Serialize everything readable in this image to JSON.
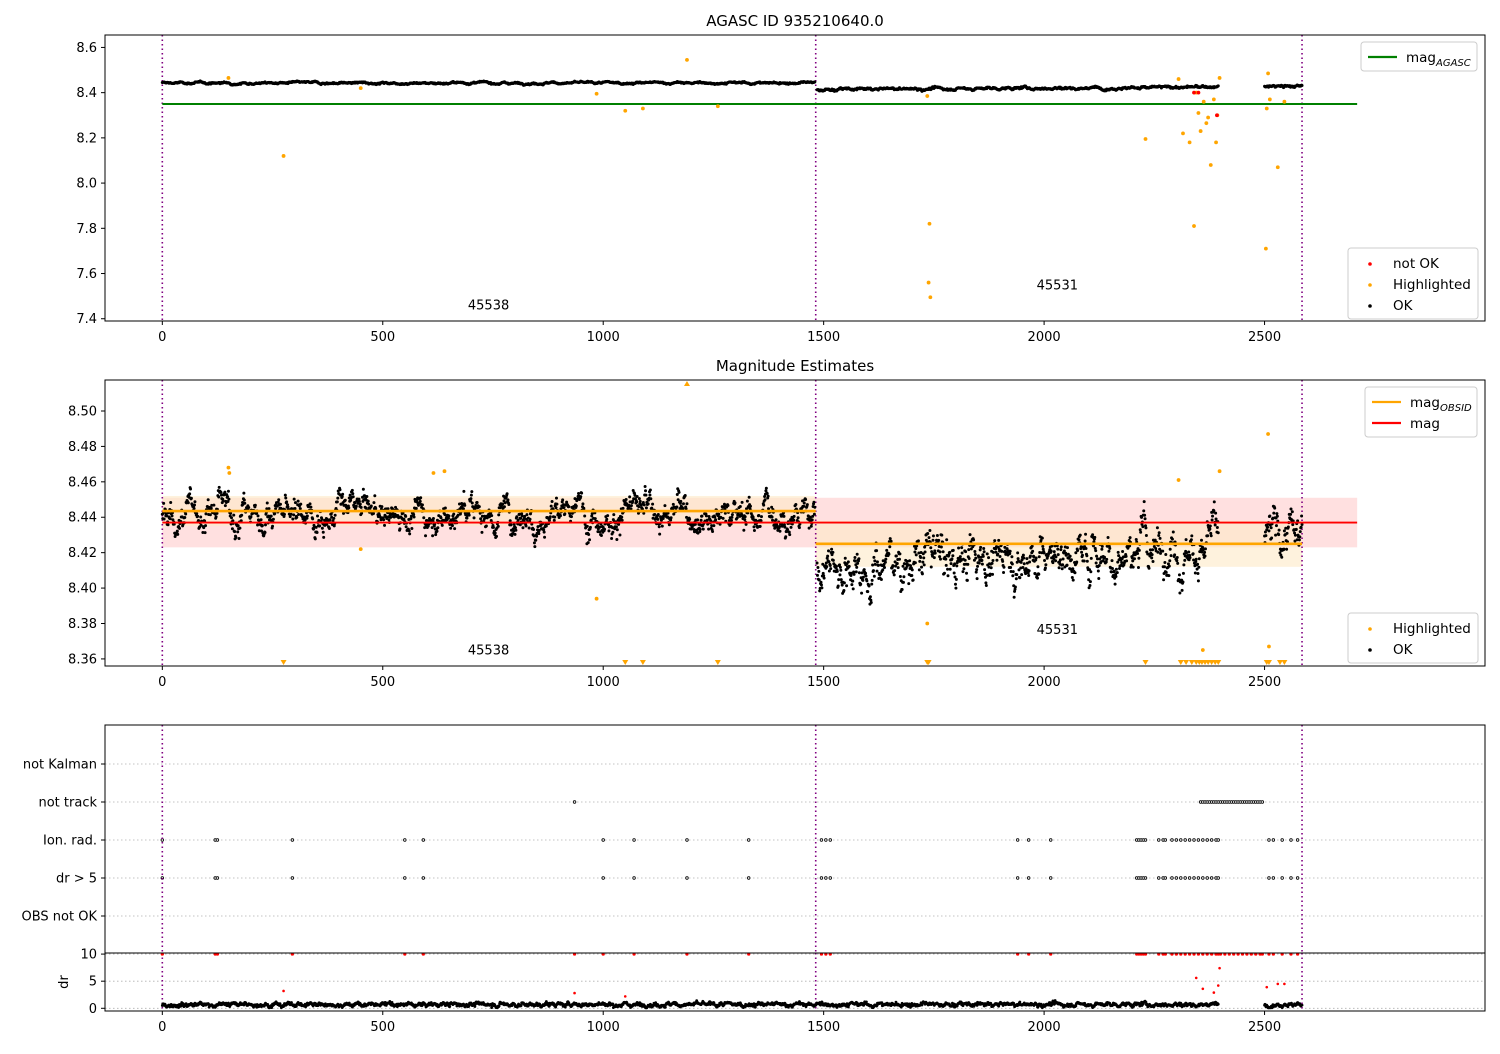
{
  "chart_data": [
    {
      "type": "scatter",
      "title": "AGASC ID 935210640.0",
      "xlabel": "",
      "ylabel": "",
      "xlim": [
        -130,
        3000
      ],
      "ylim": [
        7.39,
        8.655
      ],
      "xticks": [
        0,
        500,
        1000,
        1500,
        2000,
        2500
      ],
      "xtick_labels": [
        "0",
        "500",
        "1000",
        "1500",
        "2000",
        "2500"
      ],
      "yticks": [
        7.4,
        7.6,
        7.8,
        8.0,
        8.2,
        8.4,
        8.6
      ],
      "ytick_labels": [
        "7.4",
        "7.6",
        "7.8",
        "8.0",
        "8.2",
        "8.4",
        "8.6"
      ],
      "obs_boundaries": [
        0,
        1482,
        2585
      ],
      "obs_labels": [
        {
          "text": "45538",
          "x": 740,
          "y": 7.44
        },
        {
          "text": "45531",
          "x": 2030,
          "y": 7.53
        }
      ],
      "mag_agasc": {
        "name": "mag",
        "subscript": "AGASC",
        "value": 8.35,
        "x_range": [
          0,
          2710
        ],
        "color": "#008000"
      },
      "ok_segments": [
        {
          "x0": 0,
          "x1": 1480,
          "y0": 8.443,
          "y1": 8.443,
          "noise": 0.006
        },
        {
          "x0": 1485,
          "x1": 2395,
          "y0": 8.414,
          "y1": 8.425,
          "noise": 0.008
        },
        {
          "x0": 2500,
          "x1": 2585,
          "y0": 8.428,
          "y1": 8.428,
          "noise": 0.007
        }
      ],
      "highlighted": [
        [
          150,
          8.465
        ],
        [
          275,
          8.12
        ],
        [
          450,
          8.42
        ],
        [
          985,
          8.395
        ],
        [
          1050,
          8.32
        ],
        [
          1090,
          8.33
        ],
        [
          1190,
          8.545
        ],
        [
          1260,
          8.34
        ],
        [
          1735,
          8.385
        ],
        [
          1740,
          7.82
        ],
        [
          1738,
          7.56
        ],
        [
          1742,
          7.495
        ],
        [
          2230,
          8.195
        ],
        [
          2305,
          8.46
        ],
        [
          2315,
          8.22
        ],
        [
          2330,
          8.18
        ],
        [
          2340,
          7.81
        ],
        [
          2345,
          8.4
        ],
        [
          2350,
          8.31
        ],
        [
          2355,
          8.23
        ],
        [
          2362,
          8.36
        ],
        [
          2368,
          8.265
        ],
        [
          2372,
          8.29
        ],
        [
          2378,
          8.08
        ],
        [
          2385,
          8.37
        ],
        [
          2390,
          8.18
        ],
        [
          2393,
          8.3
        ],
        [
          2398,
          8.465
        ],
        [
          2503,
          7.71
        ],
        [
          2505,
          8.33
        ],
        [
          2508,
          8.485
        ],
        [
          2512,
          8.37
        ],
        [
          2530,
          8.07
        ],
        [
          2545,
          8.36
        ]
      ],
      "not_ok": [
        [
          2340,
          8.4
        ],
        [
          2350,
          8.4
        ],
        [
          2392,
          8.3
        ]
      ],
      "legends": [
        {
          "position": "upper right",
          "entries": [
            {
              "label": "mag",
              "subscript": "AGASC",
              "kind": "line",
              "color": "#008000"
            }
          ]
        },
        {
          "position": "lower right",
          "entries": [
            {
              "label": "not OK",
              "kind": "dot",
              "color": "#ff0000"
            },
            {
              "label": "Highlighted",
              "kind": "dot",
              "color": "#ffa500"
            },
            {
              "label": "OK",
              "kind": "dot",
              "color": "#000000"
            }
          ]
        }
      ]
    },
    {
      "type": "scatter",
      "title": "Magnitude Estimates",
      "xlabel": "",
      "ylabel": "",
      "xlim": [
        -130,
        3000
      ],
      "ylim": [
        8.356,
        8.5175
      ],
      "xticks": [
        0,
        500,
        1000,
        1500,
        2000,
        2500
      ],
      "xtick_labels": [
        "0",
        "500",
        "1000",
        "1500",
        "2000",
        "2500"
      ],
      "yticks": [
        8.36,
        8.38,
        8.4,
        8.42,
        8.44,
        8.46,
        8.48,
        8.5
      ],
      "ytick_labels": [
        "8.36",
        "8.38",
        "8.40",
        "8.42",
        "8.44",
        "8.46",
        "8.48",
        "8.50"
      ],
      "obs_boundaries": [
        0,
        1482,
        2585
      ],
      "obs_labels": [
        {
          "text": "45538",
          "x": 740,
          "y": 8.3625
        },
        {
          "text": "45531",
          "x": 2030,
          "y": 8.374
        }
      ],
      "mag": {
        "name": "mag",
        "value": 8.437,
        "band": [
          8.423,
          8.451
        ],
        "x_range": [
          0,
          2710
        ],
        "color": "#ff0000",
        "band_color": "#ffd6d6"
      },
      "mag_obsid": {
        "name": "mag",
        "subscript": "OBSID",
        "color": "#ffa500",
        "band_color": "#fde9c6",
        "segments": [
          {
            "x0": 0,
            "x1": 1482,
            "value": 8.4435,
            "band": [
              8.435,
              8.452
            ]
          },
          {
            "x0": 1482,
            "x1": 2585,
            "value": 8.425,
            "band": [
              8.412,
              8.438
            ]
          }
        ]
      },
      "ok_segments": [
        {
          "x0": 0,
          "x1": 1480,
          "y0": 8.443,
          "y1": 8.443,
          "noise": 0.009
        },
        {
          "x0": 1485,
          "x1": 2395,
          "y0": 8.414,
          "y1": 8.425,
          "noise": 0.013
        },
        {
          "x0": 2500,
          "x1": 2585,
          "y0": 8.428,
          "y1": 8.428,
          "noise": 0.011
        }
      ],
      "highlighted": [
        [
          150,
          8.468
        ],
        [
          152,
          8.465
        ],
        [
          450,
          8.422
        ],
        [
          615,
          8.465
        ],
        [
          640,
          8.466
        ],
        [
          985,
          8.394
        ],
        [
          1735,
          8.38
        ],
        [
          2305,
          8.461
        ],
        [
          2398,
          8.466
        ],
        [
          2508,
          8.487
        ],
        [
          2510,
          8.367
        ],
        [
          2360,
          8.365
        ]
      ],
      "below_range_markers": [
        275,
        1050,
        1090,
        1260,
        1735,
        1738,
        2230,
        2310,
        2322,
        2335,
        2345,
        2352,
        2358,
        2365,
        2372,
        2380,
        2388,
        2395,
        2505,
        2510,
        2535,
        2545
      ],
      "above_range_markers": [
        1190
      ],
      "legends": [
        {
          "position": "upper right",
          "entries": [
            {
              "label": "mag",
              "subscript": "OBSID",
              "kind": "line",
              "color": "#ffa500"
            },
            {
              "label": "mag",
              "kind": "line",
              "color": "#ff0000"
            }
          ]
        },
        {
          "position": "lower right",
          "entries": [
            {
              "label": "Highlighted",
              "kind": "dot",
              "color": "#ffa500"
            },
            {
              "label": "OK",
              "kind": "dot",
              "color": "#000000"
            }
          ]
        }
      ]
    },
    {
      "type": "scatter",
      "title": "",
      "xlabel": "",
      "ylabel": "",
      "xlim": [
        -130,
        3000
      ],
      "categories": [
        "not Kalman",
        "not track",
        "Ion. rad.",
        "dr > 5",
        "OBS not OK"
      ],
      "obs_boundaries": [
        0,
        1482,
        2585
      ],
      "flags": {
        "not track": [
          935,
          2355,
          2360,
          2365,
          2370,
          2375,
          2380,
          2385,
          2390,
          2395,
          2400,
          2405,
          2410,
          2415,
          2420,
          2425,
          2430,
          2435,
          2440,
          2445,
          2450,
          2455,
          2460,
          2465,
          2470,
          2475,
          2480,
          2485,
          2490,
          2495
        ],
        "Ion. rad.": [
          0,
          120,
          125,
          295,
          550,
          592,
          1000,
          1070,
          1190,
          1330,
          1495,
          1505,
          1515,
          1940,
          1965,
          2015,
          2210,
          2215,
          2220,
          2225,
          2230,
          2260,
          2270,
          2275,
          2290,
          2300,
          2310,
          2320,
          2330,
          2340,
          2350,
          2360,
          2370,
          2380,
          2390,
          2395,
          2510,
          2520,
          2540,
          2560,
          2575
        ],
        "dr > 5": [
          0,
          120,
          125,
          295,
          550,
          592,
          1000,
          1070,
          1190,
          1330,
          1495,
          1505,
          1515,
          1940,
          1965,
          2015,
          2210,
          2215,
          2220,
          2225,
          2230,
          2260,
          2270,
          2275,
          2290,
          2300,
          2310,
          2320,
          2330,
          2340,
          2350,
          2360,
          2370,
          2380,
          2390,
          2395,
          2510,
          2520,
          2540,
          2560,
          2575
        ]
      }
    },
    {
      "type": "scatter",
      "title": "",
      "xlabel": "",
      "ylabel": "dr",
      "xlim": [
        -130,
        3000
      ],
      "ylim": [
        -0.5,
        10.2
      ],
      "yticks": [
        0,
        5,
        10
      ],
      "ytick_labels": [
        "0",
        "5",
        "10"
      ],
      "xticks": [
        0,
        500,
        1000,
        1500,
        2000,
        2500
      ],
      "xtick_labels": [
        "0",
        "500",
        "1000",
        "1500",
        "2000",
        "2500"
      ],
      "obs_boundaries": [
        0,
        1482,
        2585
      ],
      "baseline": {
        "x0": 0,
        "x1": 2585,
        "value": 0.7
      },
      "outliers": [
        [
          275,
          3.2
        ],
        [
          935,
          2.8
        ],
        [
          1050,
          2.2
        ],
        [
          2345,
          5.6
        ],
        [
          2360,
          3.6
        ],
        [
          2385,
          2.9
        ],
        [
          2395,
          4.2
        ],
        [
          2398,
          7.4
        ],
        [
          2505,
          3.9
        ],
        [
          2530,
          4.5
        ],
        [
          2545,
          4.5
        ]
      ],
      "clipped_at_10": [
        0,
        120,
        125,
        295,
        550,
        592,
        935,
        1000,
        1070,
        1190,
        1330,
        1495,
        1505,
        1515,
        1940,
        1965,
        2015,
        2210,
        2215,
        2220,
        2225,
        2230,
        2260,
        2270,
        2275,
        2290,
        2300,
        2310,
        2320,
        2330,
        2340,
        2350,
        2360,
        2370,
        2380,
        2390,
        2395,
        2400,
        2410,
        2420,
        2430,
        2440,
        2450,
        2460,
        2470,
        2480,
        2490,
        2495,
        2510,
        2520,
        2540,
        2560,
        2575
      ]
    }
  ],
  "colors": {
    "ok": "#000000",
    "highlighted": "#ffa500",
    "not_ok": "#ff0000",
    "obs_boundary": "#800080",
    "grid": "#b0b0b0"
  }
}
